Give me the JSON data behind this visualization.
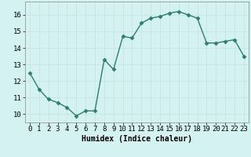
{
  "x": [
    0,
    1,
    2,
    3,
    4,
    5,
    6,
    7,
    8,
    9,
    10,
    11,
    12,
    13,
    14,
    15,
    16,
    17,
    18,
    19,
    20,
    21,
    22,
    23
  ],
  "y": [
    12.5,
    11.5,
    10.9,
    10.7,
    10.4,
    9.9,
    10.2,
    10.2,
    13.3,
    12.7,
    14.7,
    14.6,
    15.5,
    15.8,
    15.9,
    16.1,
    16.2,
    16.0,
    15.8,
    14.3,
    14.3,
    14.4,
    14.5,
    13.5
  ],
  "xlabel": "Humidex (Indice chaleur)",
  "xlim": [
    -0.5,
    23.5
  ],
  "ylim": [
    9.5,
    16.8
  ],
  "yticks": [
    10,
    11,
    12,
    13,
    14,
    15,
    16
  ],
  "xticks": [
    0,
    1,
    2,
    3,
    4,
    5,
    6,
    7,
    8,
    9,
    10,
    11,
    12,
    13,
    14,
    15,
    16,
    17,
    18,
    19,
    20,
    21,
    22,
    23
  ],
  "line_color": "#2e7d6e",
  "bg_color": "#d4f2f2",
  "grid_color_major": "#c8dede",
  "grid_color_minor": "#e0eded",
  "marker": "D",
  "marker_size": 2.5,
  "line_width": 1.0,
  "xlabel_fontsize": 7,
  "tick_fontsize": 6.5
}
